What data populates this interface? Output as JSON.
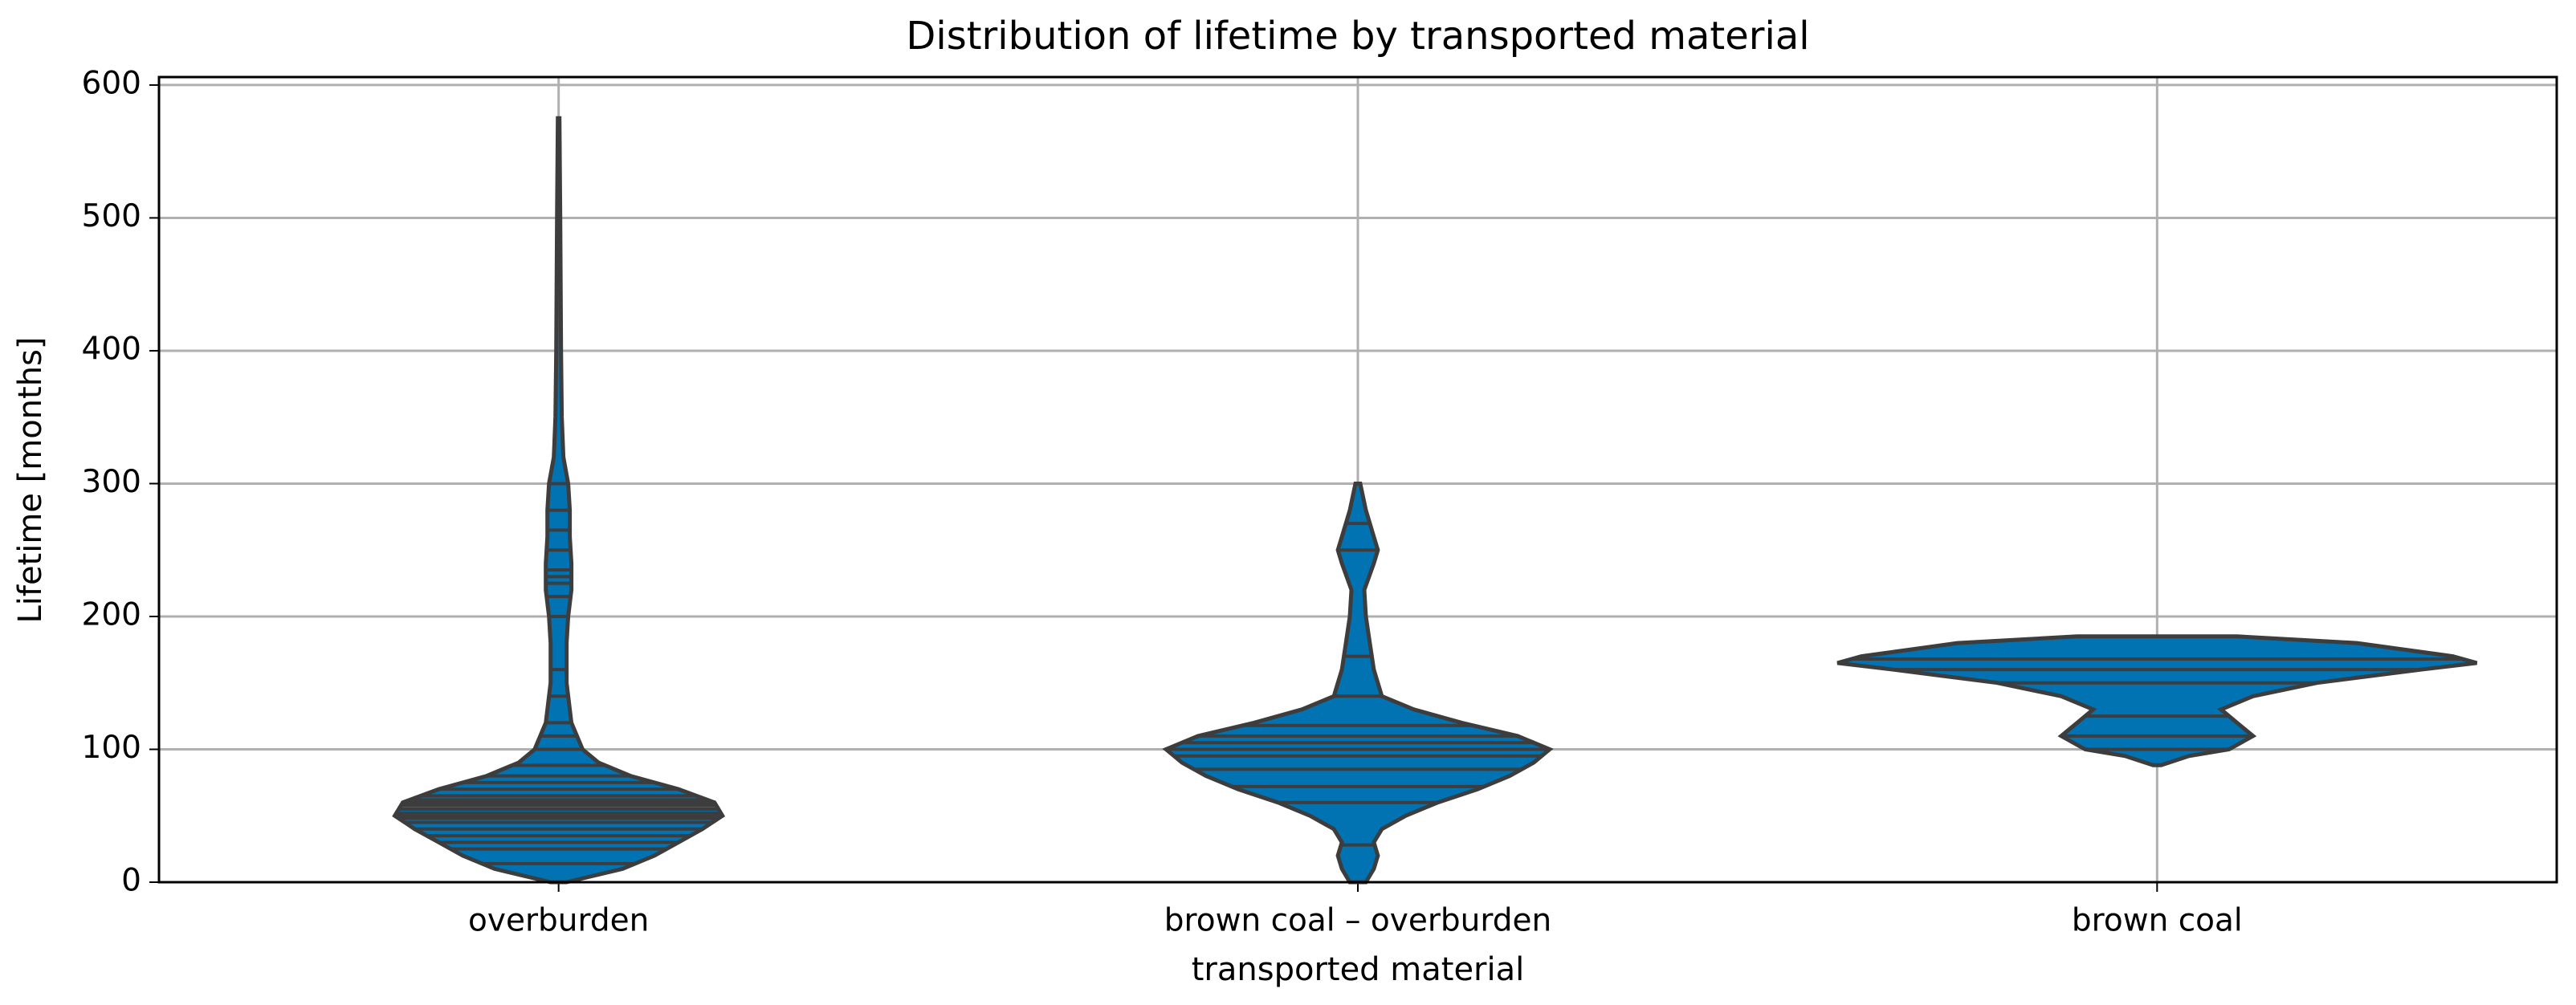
{
  "chart_data": {
    "type": "violin",
    "title": "Distribution of lifetime by transported material",
    "xlabel": "transported material",
    "ylabel": "Lifetime [months]",
    "categories": [
      "overburden",
      "brown coal – overburden",
      "brown coal"
    ],
    "ylim": [
      0,
      606
    ],
    "yticks": [
      0,
      100,
      200,
      300,
      400,
      500,
      600
    ],
    "grid": true,
    "color": "#0173b2",
    "stick_color": "#3d3d3d",
    "violins": [
      {
        "y": [
          0,
          10,
          20,
          30,
          40,
          50,
          60,
          70,
          80,
          90,
          100,
          120,
          150,
          180,
          200,
          220,
          240,
          260,
          280,
          300,
          320,
          350,
          400,
          500,
          575
        ],
        "width": [
          0.01,
          0.08,
          0.12,
          0.15,
          0.18,
          0.205,
          0.195,
          0.15,
          0.09,
          0.05,
          0.03,
          0.016,
          0.01,
          0.01,
          0.012,
          0.016,
          0.016,
          0.014,
          0.014,
          0.012,
          0.006,
          0.004,
          0.003,
          0.002,
          0.001
        ],
        "sticks": [
          14,
          25,
          30,
          35,
          40,
          45,
          48,
          50,
          52,
          55,
          58,
          60,
          62,
          65,
          70,
          75,
          80,
          88,
          100,
          110,
          120,
          140,
          160,
          200,
          215,
          225,
          230,
          235,
          250,
          265,
          280,
          300
        ]
      },
      {
        "y": [
          0,
          10,
          20,
          30,
          40,
          50,
          60,
          70,
          80,
          90,
          100,
          110,
          120,
          130,
          140,
          160,
          180,
          200,
          220,
          240,
          250,
          260,
          280,
          300
        ],
        "width": [
          0.01,
          0.02,
          0.025,
          0.02,
          0.03,
          0.06,
          0.1,
          0.15,
          0.19,
          0.22,
          0.24,
          0.2,
          0.13,
          0.07,
          0.03,
          0.02,
          0.015,
          0.01,
          0.008,
          0.02,
          0.025,
          0.02,
          0.01,
          0.003
        ],
        "sticks": [
          28,
          60,
          72,
          85,
          95,
          100,
          105,
          110,
          118,
          140,
          170,
          250,
          270
        ]
      },
      {
        "y": [
          88,
          95,
          100,
          110,
          120,
          130,
          140,
          150,
          160,
          165,
          170,
          180,
          185
        ],
        "width": [
          0.005,
          0.04,
          0.09,
          0.12,
          0.1,
          0.08,
          0.12,
          0.2,
          0.33,
          0.4,
          0.37,
          0.25,
          0.1
        ],
        "sticks": [
          100,
          110,
          125,
          150,
          160,
          168
        ]
      }
    ]
  }
}
